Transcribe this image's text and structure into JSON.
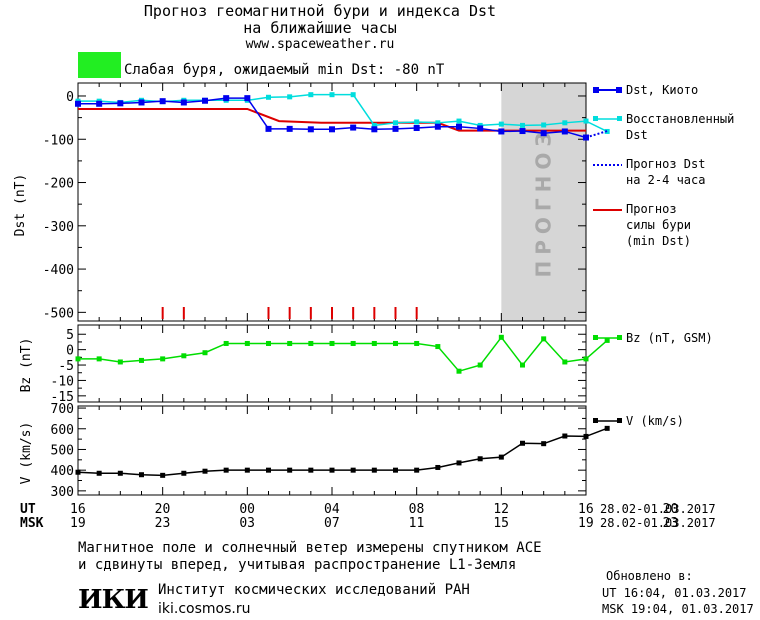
{
  "header": {
    "title_line1": "Прогноз геомагнитной бури и индекса Dst",
    "title_line2": "на ближайшие часы",
    "site": "www.spaceweather.ru",
    "storm_color": "#22ee22",
    "storm_text": "Слабая буря, ожидаемый min Dst: -80 nT"
  },
  "chart_data": [
    {
      "type": "line",
      "ylabel": "Dst (nT)",
      "ylim": [
        -520,
        30
      ],
      "yticks": [
        "0",
        "-100",
        "-200",
        "-300",
        "-400",
        "-500"
      ],
      "x_hours_ut": [
        16,
        40
      ],
      "forecast_band_hours": [
        36,
        40
      ],
      "forecast_band_label": "ПРОГНОЗ",
      "series": [
        {
          "name": "Dst, Киото",
          "color": "#0000ee",
          "x": [
            16,
            17,
            18,
            19,
            20,
            21,
            22,
            23,
            0,
            1,
            2,
            3,
            4,
            5,
            6,
            7,
            8,
            9,
            10,
            11,
            12,
            13,
            14,
            15,
            16
          ],
          "y": [
            -18,
            -18,
            -17,
            -15,
            -12,
            -15,
            -11,
            -5,
            -5,
            -76,
            -76,
            -77,
            -77,
            -73,
            -77,
            -76,
            -74,
            -71,
            -71,
            -75,
            -82,
            -81,
            -86,
            -82,
            -96
          ]
        },
        {
          "name": "Восстановленный Dst",
          "color": "#00dddd",
          "x": [
            16,
            17,
            18,
            19,
            20,
            21,
            22,
            23,
            0,
            1,
            2,
            3,
            4,
            5,
            6,
            7,
            8,
            9,
            10,
            11,
            12,
            13,
            14,
            15,
            16,
            17
          ],
          "y": [
            -12,
            -12,
            -15,
            -10,
            -13,
            -10,
            -10,
            -10,
            -10,
            -3,
            -2,
            3,
            3,
            3,
            -68,
            -62,
            -60,
            -62,
            -58,
            -68,
            -65,
            -68,
            -67,
            -62,
            -58,
            -82
          ]
        },
        {
          "name": "Прогноз Dst на 2-4 часа",
          "color": "#0000ee",
          "dashed": true,
          "x": [
            16,
            17
          ],
          "y": [
            -96,
            -81
          ]
        },
        {
          "name": "Прогноз силы бури (min Dst)",
          "color": "#dd0000",
          "x": [
            16,
            16.05,
            24,
            25.5,
            27.5,
            33,
            34,
            37,
            40
          ],
          "y": [
            -30,
            -30,
            -30,
            -58,
            -62,
            -62,
            -80,
            -80,
            -80
          ]
        }
      ],
      "storm_markers_hours": [
        20,
        21,
        25,
        26,
        27,
        28,
        29,
        30,
        31,
        32
      ]
    },
    {
      "type": "line",
      "ylabel": "Bz (nT)",
      "ylim": [
        -17,
        8
      ],
      "yticks": [
        "5",
        "0",
        "-5",
        "-10",
        "-15"
      ],
      "series": [
        {
          "name": "Bz (nT, GSM)",
          "color": "#00dd00",
          "x": [
            16,
            17,
            18,
            19,
            20,
            21,
            22,
            23,
            0,
            1,
            2,
            3,
            4,
            5,
            6,
            7,
            8,
            9,
            10,
            11,
            12,
            13,
            14,
            15,
            16,
            17
          ],
          "y": [
            -3,
            -3,
            -4,
            -3.5,
            -3,
            -2,
            -1,
            2,
            2,
            2,
            2,
            2,
            2,
            2,
            2,
            2,
            2,
            1,
            -7,
            -5,
            4,
            -5,
            3.5,
            -4,
            -3,
            3
          ]
        }
      ]
    },
    {
      "type": "line",
      "ylabel": "V (km/s)",
      "ylim": [
        280,
        710
      ],
      "yticks": [
        "700",
        "600",
        "500",
        "400",
        "300"
      ],
      "series": [
        {
          "name": "V (km/s)",
          "color": "#000000",
          "x": [
            16,
            17,
            18,
            19,
            20,
            21,
            22,
            23,
            0,
            1,
            2,
            3,
            4,
            5,
            6,
            7,
            8,
            9,
            10,
            11,
            12,
            13,
            14,
            15,
            16,
            17
          ],
          "y": [
            390,
            385,
            385,
            378,
            375,
            385,
            395,
            400,
            400,
            400,
            400,
            400,
            400,
            400,
            400,
            400,
            400,
            413,
            435,
            455,
            463,
            530,
            528,
            565,
            563,
            602
          ]
        }
      ]
    }
  ],
  "legend": {
    "dst_kyoto": "Dst, Киото",
    "dst_rec_1": "Восстановленный",
    "dst_rec_2": "Dst",
    "dst_fc_1": "Прогноз Dst",
    "dst_fc_2": "на 2-4 часа",
    "storm_1": "Прогноз",
    "storm_2": "силы бури",
    "storm_3": "(min Dst)",
    "bz": "Bz (nT, GSM)",
    "v": "V (km/s)"
  },
  "xaxis": {
    "ut_label": "UT",
    "msk_label": "MSK",
    "ut_ticks": [
      "16",
      "20",
      "00",
      "04",
      "08",
      "12",
      "16",
      "20"
    ],
    "msk_ticks": [
      "19",
      "23",
      "03",
      "07",
      "11",
      "15",
      "19",
      "23"
    ],
    "date_range": "28.02-01.03.2017"
  },
  "footer": {
    "line1": "Магнитное поле и солнечный ветер измерены спутником ACE",
    "line2": "и сдвинуты вперед, учитывая распространение L1-Земля",
    "logo": "ИКИ",
    "institute": "Институт космических исследований РАН",
    "institute_url": "iki.cosmos.ru",
    "updated_label": "Обновлено в:",
    "updated_ut": "UT  16:04, 01.03.2017",
    "updated_msk": "MSK 19:04, 01.03.2017"
  }
}
